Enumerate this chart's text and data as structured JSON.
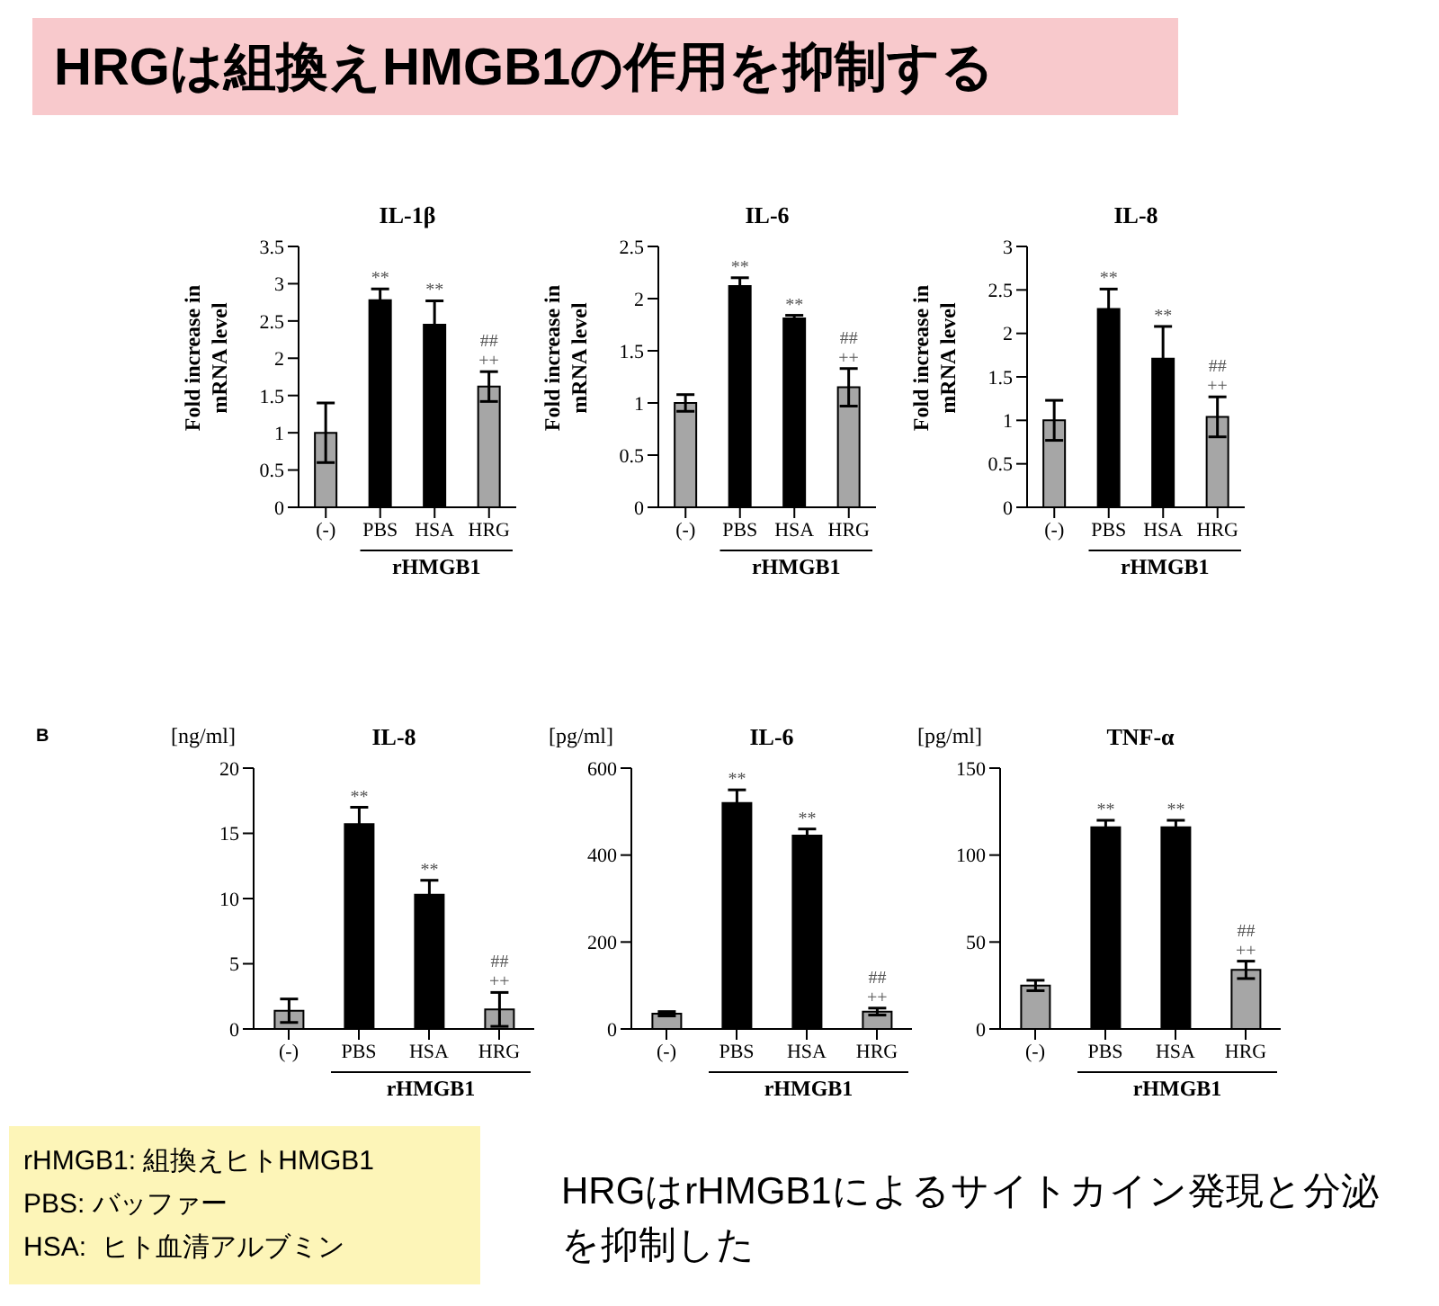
{
  "chart_data": [
    {
      "type": "other",
      "title": "HRGは組換えHMGB1の作用を抑制する"
    },
    {
      "type": "bar",
      "title": "IL-1β",
      "ylabel": "Fold increase in mRNA level",
      "xlabel": "rHMGB1",
      "categories": [
        "(-)",
        "PBS",
        "HSA",
        "HRG"
      ],
      "values": [
        1.0,
        2.78,
        2.45,
        1.62
      ],
      "errors": [
        0.4,
        0.15,
        0.32,
        0.2
      ],
      "colors": [
        "#a6a6a6",
        "#000000",
        "#000000",
        "#a6a6a6"
      ],
      "ylim": [
        0,
        3.5
      ],
      "yticks": [
        0,
        0.5,
        1,
        1.5,
        2,
        2.5,
        3,
        3.5
      ],
      "annotations": [
        {
          "text": "**",
          "x": "PBS",
          "y": 2.78
        },
        {
          "text": "**",
          "x": "HSA",
          "y": 2.45
        },
        {
          "text": "++",
          "x": "HRG",
          "y": 1.62
        },
        {
          "text": "##",
          "x": "HRG",
          "y": 1.62
        }
      ]
    },
    {
      "type": "bar",
      "title": "IL-6",
      "ylabel": "Fold increase in mRNA level",
      "xlabel": "rHMGB1",
      "categories": [
        "(-)",
        "PBS",
        "HSA",
        "HRG"
      ],
      "values": [
        1.0,
        2.12,
        1.81,
        1.15
      ],
      "errors": [
        0.08,
        0.08,
        0.03,
        0.18
      ],
      "colors": [
        "#a6a6a6",
        "#000000",
        "#000000",
        "#a6a6a6"
      ],
      "ylim": [
        0,
        2.5
      ],
      "yticks": [
        0,
        0.5,
        1,
        1.5,
        2,
        2.5
      ],
      "annotations": [
        {
          "text": "**",
          "x": "PBS",
          "y": 2.12
        },
        {
          "text": "**",
          "x": "HSA",
          "y": 1.81
        },
        {
          "text": "++",
          "x": "HRG",
          "y": 1.15
        },
        {
          "text": "##",
          "x": "HRG",
          "y": 1.15
        }
      ]
    },
    {
      "type": "bar",
      "title": "IL-8",
      "ylabel": "Fold increase in mRNA level",
      "xlabel": "rHMGB1",
      "categories": [
        "(-)",
        "PBS",
        "HSA",
        "HRG"
      ],
      "values": [
        1.0,
        2.28,
        1.71,
        1.04
      ],
      "errors": [
        0.23,
        0.23,
        0.37,
        0.23
      ],
      "colors": [
        "#a6a6a6",
        "#000000",
        "#000000",
        "#a6a6a6"
      ],
      "ylim": [
        0,
        3
      ],
      "yticks": [
        0,
        0.5,
        1,
        1.5,
        2,
        2.5,
        3
      ],
      "annotations": [
        {
          "text": "**",
          "x": "PBS",
          "y": 2.28
        },
        {
          "text": "**",
          "x": "HSA",
          "y": 1.71
        },
        {
          "text": "++",
          "x": "HRG",
          "y": 1.04
        },
        {
          "text": "##",
          "x": "HRG",
          "y": 1.04
        }
      ]
    },
    {
      "type": "bar",
      "title": "IL-8",
      "ylabel": "[ng/ml]",
      "xlabel": "rHMGB1",
      "categories": [
        "(-)",
        "PBS",
        "HSA",
        "HRG"
      ],
      "values": [
        1.4,
        15.7,
        10.3,
        1.5
      ],
      "errors": [
        0.9,
        1.3,
        1.1,
        1.3
      ],
      "colors": [
        "#a6a6a6",
        "#000000",
        "#000000",
        "#a6a6a6"
      ],
      "ylim": [
        0,
        20
      ],
      "yticks": [
        0,
        5,
        10,
        15,
        20
      ],
      "annotations": [
        "B",
        {
          "text": "**",
          "x": "PBS",
          "y": 15.7
        },
        {
          "text": "**",
          "x": "HSA",
          "y": 10.3
        },
        {
          "text": "++",
          "x": "HRG",
          "y": 1.5
        },
        {
          "text": "##",
          "x": "HRG",
          "y": 1.5
        }
      ]
    },
    {
      "type": "bar",
      "title": "IL-6",
      "ylabel": "[pg/ml]",
      "xlabel": "rHMGB1",
      "categories": [
        "(-)",
        "PBS",
        "HSA",
        "HRG"
      ],
      "values": [
        35,
        520,
        445,
        40
      ],
      "errors": [
        5,
        30,
        15,
        8
      ],
      "colors": [
        "#a6a6a6",
        "#000000",
        "#000000",
        "#a6a6a6"
      ],
      "ylim": [
        0,
        600
      ],
      "yticks": [
        0,
        200,
        400,
        600
      ],
      "annotations": [
        {
          "text": "**",
          "x": "PBS",
          "y": 520
        },
        {
          "text": "**",
          "x": "HSA",
          "y": 445
        },
        {
          "text": "++",
          "x": "HRG",
          "y": 40
        },
        {
          "text": "##",
          "x": "HRG",
          "y": 40
        }
      ]
    },
    {
      "type": "bar",
      "title": "TNF-α",
      "ylabel": "[pg/ml]",
      "xlabel": "rHMGB1",
      "categories": [
        "(-)",
        "PBS",
        "HSA",
        "HRG"
      ],
      "values": [
        25,
        116,
        116,
        34
      ],
      "errors": [
        3,
        4,
        4,
        5
      ],
      "colors": [
        "#a6a6a6",
        "#000000",
        "#000000",
        "#a6a6a6"
      ],
      "ylim": [
        0,
        150
      ],
      "yticks": [
        0,
        50,
        100,
        150
      ],
      "annotations": [
        {
          "text": "**",
          "x": "PBS",
          "y": 116
        },
        {
          "text": "**",
          "x": "HSA",
          "y": 116
        },
        {
          "text": "++",
          "x": "HRG",
          "y": 34
        },
        {
          "text": "##",
          "x": "HRG",
          "y": 34
        }
      ]
    },
    {
      "type": "other",
      "annotations": [
        "rHMGB1: 組換えヒトHMGB1",
        "PBS: バッファー",
        "HSA:  ヒト血清アルブミン"
      ]
    },
    {
      "type": "other",
      "annotations": [
        "HRGはrHMGB1によるサイトカイン発現と分泌を抑制した"
      ]
    }
  ]
}
